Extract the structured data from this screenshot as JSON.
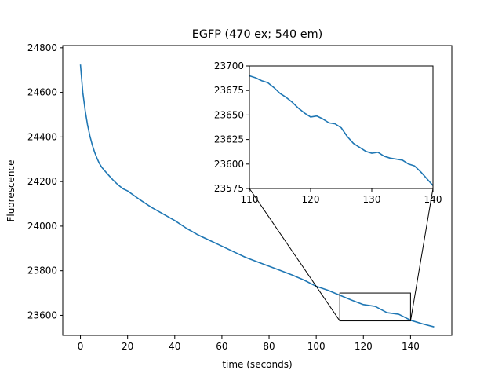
{
  "chart_data": [
    {
      "type": "line",
      "title": "EGFP (470 ex; 540 em)",
      "xlabel": "time (seconds)",
      "ylabel": "Fluorescence",
      "xlim": [
        -7.5,
        157.5
      ],
      "ylim": [
        23510,
        24810
      ],
      "xticks": [
        0,
        20,
        40,
        60,
        80,
        100,
        120,
        140
      ],
      "yticks": [
        23600,
        23800,
        24000,
        24200,
        24400,
        24600,
        24800
      ],
      "grid": false,
      "series_color": "#1f77b4",
      "series": [
        {
          "x": [
            0,
            1,
            2,
            3,
            4,
            5,
            6,
            7,
            8,
            9,
            10,
            12,
            14,
            16,
            18,
            20,
            25,
            30,
            35,
            40,
            45,
            50,
            55,
            60,
            65,
            70,
            75,
            80,
            85,
            90,
            95,
            100,
            105,
            110,
            115,
            120,
            125,
            130,
            135,
            140,
            145,
            150
          ],
          "y": [
            24725,
            24600,
            24520,
            24455,
            24405,
            24365,
            24332,
            24305,
            24282,
            24265,
            24252,
            24228,
            24205,
            24185,
            24168,
            24158,
            24120,
            24085,
            24055,
            24025,
            23990,
            23960,
            23935,
            23910,
            23885,
            23860,
            23840,
            23820,
            23800,
            23780,
            23757,
            23730,
            23712,
            23690,
            23668,
            23648,
            23640,
            23612,
            23605,
            23578,
            23562,
            23548
          ]
        }
      ],
      "zoom_box": {
        "x": [
          110,
          140
        ],
        "y": [
          23575,
          23700
        ]
      }
    },
    {
      "type": "line",
      "title": "",
      "xlim": [
        110,
        140
      ],
      "ylim": [
        23575,
        23700
      ],
      "xticks": [
        110,
        120,
        130,
        140
      ],
      "yticks": [
        23575,
        23600,
        23625,
        23650,
        23675,
        23700
      ],
      "grid": false,
      "series_color": "#1f77b4",
      "series": [
        {
          "x": [
            110,
            111,
            112,
            113,
            114,
            115,
            116,
            117,
            118,
            119,
            120,
            121,
            122,
            123,
            124,
            125,
            126,
            127,
            128,
            129,
            130,
            131,
            132,
            133,
            134,
            135,
            136,
            137,
            138,
            139,
            140
          ],
          "y": [
            23690,
            23688,
            23685,
            23683,
            23678,
            23672,
            23668,
            23663,
            23657,
            23652,
            23648,
            23649,
            23646,
            23642,
            23641,
            23637,
            23628,
            23621,
            23617,
            23613,
            23611,
            23612,
            23608,
            23606,
            23605,
            23604,
            23600,
            23598,
            23592,
            23585,
            23578
          ]
        }
      ]
    }
  ]
}
